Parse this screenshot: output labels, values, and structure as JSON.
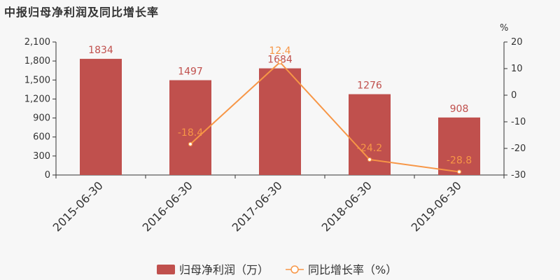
{
  "title": "中报归母净利润及同比增长率",
  "chart_data": {
    "type": "bar+line",
    "title": "中报归母净利润及同比增长率",
    "categories": [
      "2015-06-30",
      "2016-06-30",
      "2017-06-30",
      "2018-06-30",
      "2019-06-30"
    ],
    "series": [
      {
        "name": "归母净利润（万）",
        "type": "bar",
        "axis": "left",
        "values": [
          1834,
          1497,
          1684,
          1276,
          908
        ],
        "labels": [
          "1834",
          "1497",
          "1684",
          "1276",
          "908"
        ],
        "color": "#c0504d"
      },
      {
        "name": "同比增长率（%）",
        "type": "line",
        "axis": "right",
        "values": [
          null,
          -18.4,
          12.4,
          -24.2,
          -28.8
        ],
        "labels": [
          "",
          "-18.4",
          "12.4",
          "-24.2",
          "-28.8"
        ],
        "color": "#f79646"
      }
    ],
    "y_left": {
      "min": 0,
      "max": 2100,
      "ticks": [
        0,
        300,
        600,
        900,
        1200,
        1500,
        1800,
        2100
      ],
      "tick_labels": [
        "0",
        "300",
        "600",
        "900",
        "1,200",
        "1,500",
        "1,800",
        "2,100"
      ]
    },
    "y_right": {
      "min": -30,
      "max": 20,
      "ticks": [
        -30,
        -20,
        -10,
        0,
        10,
        20
      ],
      "tick_labels": [
        "-30",
        "-20",
        "-10",
        "0",
        "10",
        "20"
      ],
      "unit": "%"
    },
    "legend": {
      "placement": "bottom-center",
      "items": [
        "归母净利润（万）",
        "同比增长率（%）"
      ]
    },
    "grid": false
  }
}
